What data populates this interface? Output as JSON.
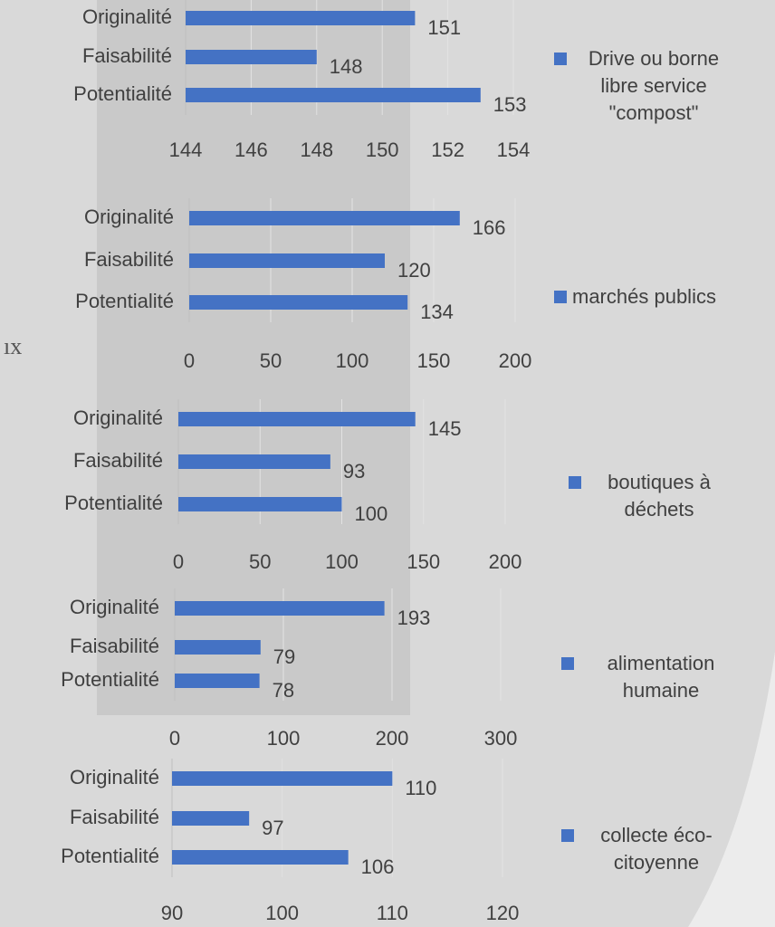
{
  "chart_data": [
    {
      "type": "bar",
      "orientation": "horizontal",
      "categories": [
        "Originalité",
        "Faisabilité",
        "Potentialité"
      ],
      "series": [
        {
          "name": "Drive ou borne libre service \"compost\"",
          "color": "#4472c4",
          "values": [
            151,
            148,
            153
          ]
        }
      ],
      "xlim": [
        144,
        154
      ],
      "xticks": [
        144,
        146,
        148,
        150,
        152,
        154
      ],
      "grid": true,
      "legend": "right"
    },
    {
      "type": "bar",
      "orientation": "horizontal",
      "categories": [
        "Originalité",
        "Faisabilité",
        "Potentialité"
      ],
      "series": [
        {
          "name": "marchés publics",
          "color": "#4472c4",
          "values": [
            166,
            120,
            134
          ]
        }
      ],
      "xlim": [
        0,
        200
      ],
      "xticks": [
        0,
        50,
        100,
        150,
        200
      ],
      "grid": true,
      "legend": "right",
      "annotation": "ıx"
    },
    {
      "type": "bar",
      "orientation": "horizontal",
      "categories": [
        "Originalité",
        "Faisabilité",
        "Potentialité"
      ],
      "series": [
        {
          "name": "boutiques à déchets",
          "color": "#4472c4",
          "values": [
            145,
            93,
            100
          ]
        }
      ],
      "xlim": [
        0,
        200
      ],
      "xticks": [
        0,
        50,
        100,
        150,
        200
      ],
      "grid": true,
      "legend": "right"
    },
    {
      "type": "bar",
      "orientation": "horizontal",
      "categories": [
        "Originalité",
        "Faisabilité",
        "Potentialité"
      ],
      "series": [
        {
          "name": "alimentation humaine",
          "color": "#4472c4",
          "values": [
            193,
            79,
            78
          ]
        }
      ],
      "xlim": [
        0,
        300
      ],
      "xticks": [
        0,
        100,
        200,
        300
      ],
      "grid": true,
      "legend": "right"
    },
    {
      "type": "bar",
      "orientation": "horizontal",
      "categories": [
        "Originalité",
        "Faisabilité",
        "Potentialité"
      ],
      "series": [
        {
          "name": "collecte éco-citoyenne",
          "color": "#4472c4",
          "values": [
            110,
            97,
            106
          ]
        }
      ],
      "xlim": [
        90,
        120
      ],
      "xticks": [
        90,
        100,
        110,
        120
      ],
      "grid": true,
      "legend": "right"
    }
  ]
}
